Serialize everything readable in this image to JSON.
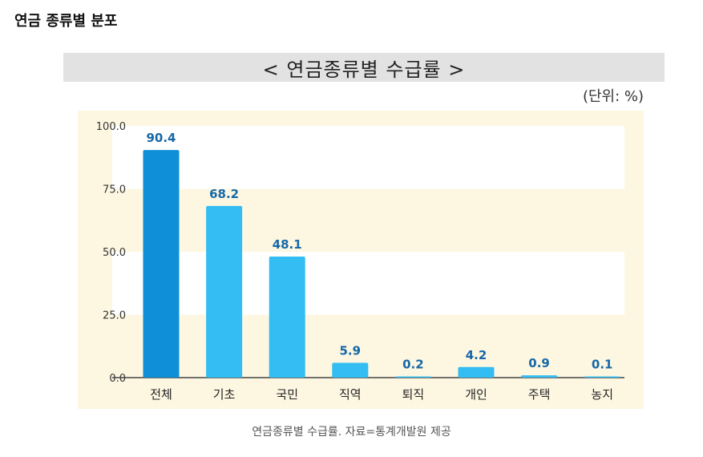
{
  "page_title": "연금 종류별 분포",
  "banner_title": "< 연금종류별  수급률 >",
  "unit_label": "(단위: %)",
  "caption": "연금종류별 수급률. 자료=통계개발원 제공",
  "colors": {
    "highlight_bar": "#0e8fd8",
    "bar": "#33bdf2",
    "value_label": "#1668a8",
    "band": "#ffffff",
    "plot_bg": "#fdf7e2"
  },
  "chart_data": {
    "type": "bar",
    "title": "< 연금종류별  수급률 >",
    "categories": [
      "전체",
      "기초",
      "국민",
      "직역",
      "퇴직",
      "개인",
      "주택",
      "농지"
    ],
    "values": [
      90.4,
      68.2,
      48.1,
      5.9,
      0.2,
      4.2,
      0.9,
      0.1
    ],
    "value_labels": [
      "90.4",
      "68.2",
      "48.1",
      "5.9",
      "0.2",
      "4.2",
      "0.9",
      "0.1"
    ],
    "yticks": [
      "100.0",
      "75.0",
      "50.0",
      "25.0",
      "0.0"
    ],
    "ylim": [
      0,
      100
    ],
    "unit": "(단위: %)",
    "grid": "alternating bands",
    "legend": "none"
  }
}
